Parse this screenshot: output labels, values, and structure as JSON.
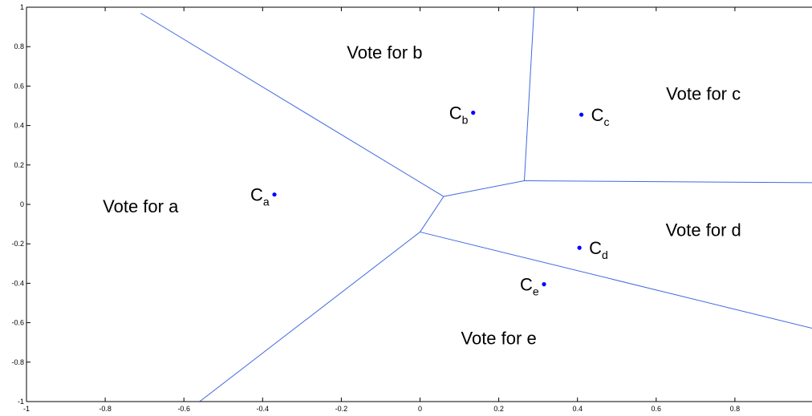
{
  "chart_data": {
    "type": "scatter",
    "title": "",
    "xlabel": "",
    "ylabel": "",
    "xlim": [
      -1,
      1
    ],
    "ylim": [
      -1,
      1
    ],
    "grid": false,
    "x_ticks": [
      -1,
      -0.8,
      -0.6,
      -0.4,
      -0.2,
      0,
      0.2,
      0.4,
      0.6,
      0.8,
      1
    ],
    "x_tick_labels": [
      "-1",
      "-0.8",
      "-0.6",
      "-0.4",
      "-0.2",
      "0",
      "0.2",
      "0.4",
      "0.6",
      "0.8",
      "1"
    ],
    "y_ticks": [
      1,
      0.8,
      0.6,
      0.4,
      0.2,
      0,
      -0.2,
      -0.4,
      -0.6,
      -0.8,
      -1
    ],
    "y_tick_labels": [
      "1",
      "0.8",
      "0.6",
      "0.4",
      "0.2",
      "0",
      "-0.2",
      "-0.4",
      "-0.6",
      "-0.8",
      "-1"
    ],
    "line_color": "#4169e1",
    "point_color": "#0000ff",
    "boundaries": [
      {
        "name": "a|b",
        "x": [
          -0.71,
          0.06
        ],
        "y": [
          0.97,
          0.04
        ]
      },
      {
        "name": "a|e",
        "x": [
          0.0,
          -0.56
        ],
        "y": [
          -0.14,
          -1.0
        ]
      },
      {
        "name": "a|mid",
        "x": [
          0.06,
          0.0
        ],
        "y": [
          0.04,
          -0.14
        ]
      },
      {
        "name": "b|mid",
        "x": [
          0.06,
          0.265
        ],
        "y": [
          0.04,
          0.12
        ]
      },
      {
        "name": "b|c",
        "x": [
          0.265,
          0.29
        ],
        "y": [
          0.12,
          1.0
        ]
      },
      {
        "name": "c|d",
        "x": [
          0.265,
          1.0
        ],
        "y": [
          0.12,
          0.11
        ]
      },
      {
        "name": "d|e",
        "x": [
          0.0,
          1.0
        ],
        "y": [
          -0.14,
          -0.63
        ]
      }
    ],
    "points": [
      {
        "label": "C",
        "sub": "a",
        "x": -0.37,
        "y": 0.05
      },
      {
        "label": "C",
        "sub": "b",
        "x": 0.135,
        "y": 0.465
      },
      {
        "label": "C",
        "sub": "c",
        "x": 0.41,
        "y": 0.455
      },
      {
        "label": "C",
        "sub": "d",
        "x": 0.405,
        "y": -0.22
      },
      {
        "label": "C",
        "sub": "e",
        "x": 0.315,
        "y": -0.405
      }
    ],
    "regions": [
      {
        "text": "Vote for a",
        "x": -0.71,
        "y": -0.04
      },
      {
        "text": "Vote for b",
        "x": -0.09,
        "y": 0.74
      },
      {
        "text": "Vote for c",
        "x": 0.72,
        "y": 0.53
      },
      {
        "text": "Vote for d",
        "x": 0.72,
        "y": -0.16
      },
      {
        "text": "Vote for e",
        "x": 0.2,
        "y": -0.71
      }
    ]
  }
}
